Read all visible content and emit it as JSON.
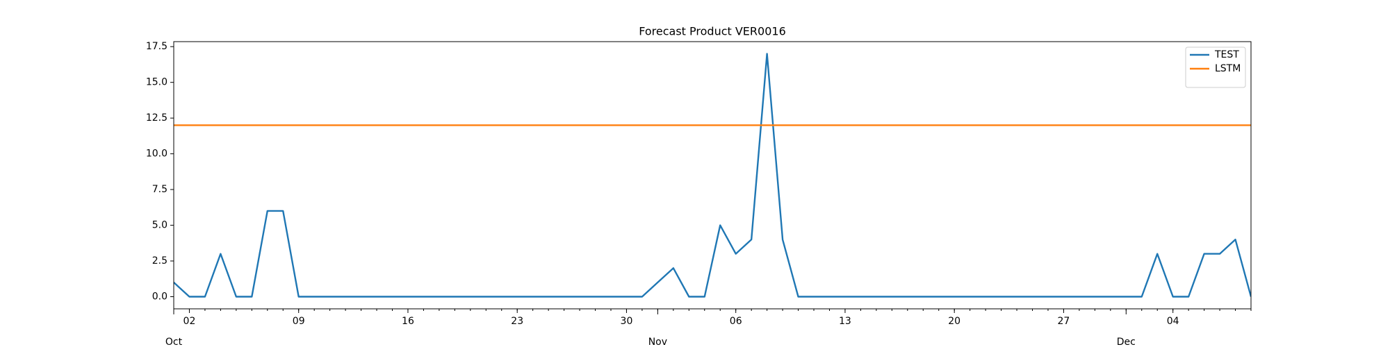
{
  "chart_data": {
    "type": "line",
    "title": "Forecast Product VER0016",
    "x": [
      0,
      1,
      2,
      3,
      4,
      5,
      6,
      7,
      8,
      9,
      10,
      11,
      12,
      13,
      14,
      15,
      16,
      17,
      18,
      19,
      20,
      21,
      22,
      23,
      24,
      25,
      26,
      27,
      28,
      29,
      30,
      31,
      32,
      33,
      34,
      35,
      36,
      37,
      38,
      39,
      40,
      41,
      42,
      43,
      44,
      45,
      46,
      47,
      48,
      49,
      50,
      51,
      52,
      53,
      54,
      55,
      56,
      57,
      58,
      59,
      60,
      61,
      62,
      63,
      64,
      65,
      66,
      67,
      68,
      69
    ],
    "series": [
      {
        "name": "TEST",
        "color": "#1f77b4",
        "values": [
          1,
          0,
          0,
          3,
          0,
          0,
          6,
          6,
          0,
          0,
          0,
          0,
          0,
          0,
          0,
          0,
          0,
          0,
          0,
          0,
          0,
          0,
          0,
          0,
          0,
          0,
          0,
          0,
          0,
          0,
          0,
          1,
          2,
          0,
          0,
          5,
          3,
          4,
          17,
          4,
          0,
          0,
          0,
          0,
          0,
          0,
          0,
          0,
          0,
          0,
          0,
          0,
          0,
          0,
          0,
          0,
          0,
          0,
          0,
          0,
          0,
          0,
          0,
          3,
          0,
          0,
          3,
          3,
          4,
          0
        ]
      },
      {
        "name": "LSTM",
        "color": "#ff7f0e",
        "values": [
          12,
          12,
          12,
          12,
          12,
          12,
          12,
          12,
          12,
          12,
          12,
          12,
          12,
          12,
          12,
          12,
          12,
          12,
          12,
          12,
          12,
          12,
          12,
          12,
          12,
          12,
          12,
          12,
          12,
          12,
          12,
          12,
          12,
          12,
          12,
          12,
          12,
          12,
          12,
          12,
          12,
          12,
          12,
          12,
          12,
          12,
          12,
          12,
          12,
          12,
          12,
          12,
          12,
          12,
          12,
          12,
          12,
          12,
          12,
          12,
          12,
          12,
          12,
          12,
          12,
          12,
          12,
          12,
          12,
          12
        ]
      }
    ],
    "xlim": [
      0,
      69
    ],
    "xticks": [
      {
        "value": 1,
        "label": "02"
      },
      {
        "value": 8,
        "label": "09"
      },
      {
        "value": 15,
        "label": "16"
      },
      {
        "value": 22,
        "label": "23"
      },
      {
        "value": 29,
        "label": "30"
      },
      {
        "value": 36,
        "label": "06"
      },
      {
        "value": 43,
        "label": "13"
      },
      {
        "value": 50,
        "label": "20"
      },
      {
        "value": 57,
        "label": "27"
      },
      {
        "value": 64,
        "label": "04"
      }
    ],
    "month_ticks": [
      {
        "value": 0,
        "label": "Oct"
      },
      {
        "value": 31,
        "label": "Nov"
      },
      {
        "value": 61,
        "label": "Dec"
      }
    ],
    "ylim": [
      -0.85,
      17.85
    ],
    "yticks": [
      {
        "value": 0,
        "label": "0.0"
      },
      2.5,
      {
        "value": 5,
        "label": "5.0"
      },
      7.5,
      {
        "value": 10,
        "label": "10.0"
      },
      12.5,
      {
        "value": 15,
        "label": "15.0"
      },
      17.5
    ],
    "legend": "upper right",
    "grid": false
  }
}
